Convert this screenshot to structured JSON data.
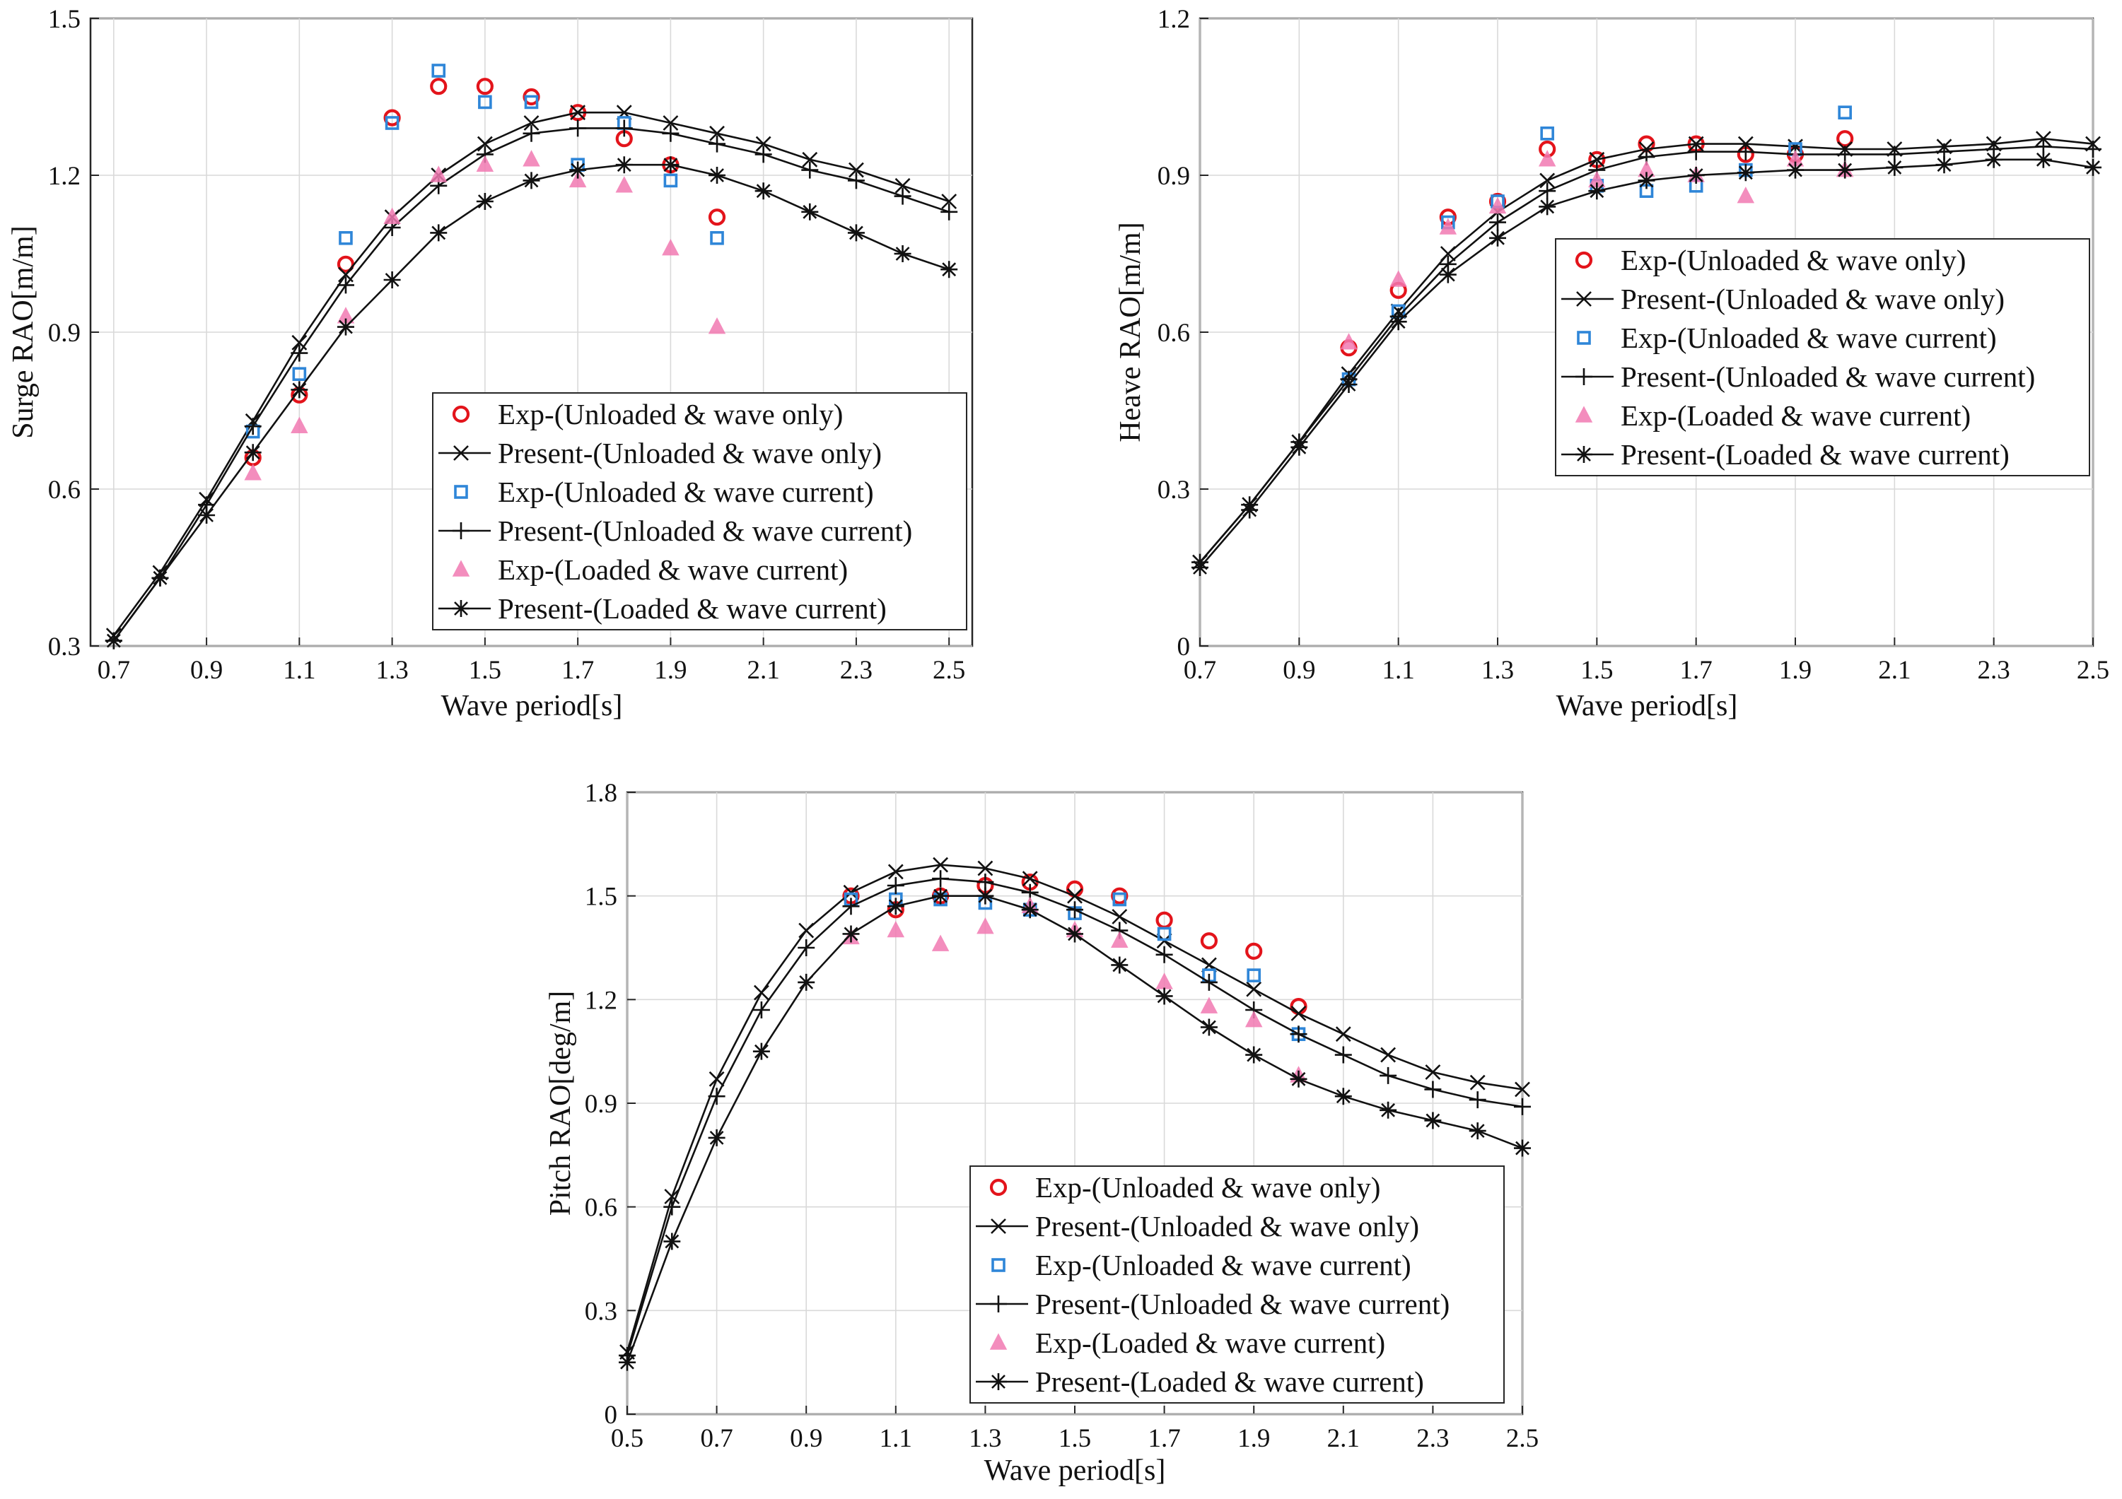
{
  "colors": {
    "exp_unloaded_wave_only": "#e3141b",
    "exp_unloaded_wave_current": "#2f86d8",
    "exp_loaded_wave_current": "#f27ab2",
    "present_lines": "#111111"
  },
  "chart_data": [
    {
      "type": "line",
      "title": "",
      "xlabel": "Wave period[s]",
      "ylabel": "Surge RAO[m/m]",
      "xlim": [
        0.65,
        2.55
      ],
      "ylim": [
        0.3,
        1.5
      ],
      "xticks": [
        "0.7",
        "0.9",
        "1.1",
        "1.3",
        "1.5",
        "1.7",
        "1.9",
        "2.1",
        "2.3",
        "2.5"
      ],
      "yticks": [
        "0.3",
        "0.6",
        "0.9",
        "1.2",
        "1.5"
      ],
      "legend_position": "lower-right",
      "grid": true,
      "series": [
        {
          "name": "Exp-(Unloaded & wave only)",
          "marker": "circle",
          "style": "exp_unloaded_wave_only",
          "x": [
            1.0,
            1.1,
            1.2,
            1.3,
            1.4,
            1.5,
            1.6,
            1.7,
            1.8,
            1.9,
            2.0
          ],
          "y": [
            0.66,
            0.78,
            1.03,
            1.31,
            1.37,
            1.37,
            1.35,
            1.32,
            1.27,
            1.22,
            1.12
          ]
        },
        {
          "name": "Present-(Unloaded & wave only)",
          "marker": "x",
          "style": "line",
          "x": [
            0.7,
            0.8,
            0.9,
            1.0,
            1.1,
            1.2,
            1.3,
            1.4,
            1.5,
            1.6,
            1.7,
            1.8,
            1.9,
            2.0,
            2.1,
            2.2,
            2.3,
            2.4,
            2.5
          ],
          "y": [
            0.32,
            0.44,
            0.58,
            0.73,
            0.88,
            1.01,
            1.12,
            1.2,
            1.26,
            1.3,
            1.32,
            1.32,
            1.3,
            1.28,
            1.26,
            1.23,
            1.21,
            1.18,
            1.15
          ]
        },
        {
          "name": "Exp-(Unloaded & wave current)",
          "marker": "square",
          "style": "exp_unloaded_wave_current",
          "x": [
            1.0,
            1.1,
            1.2,
            1.3,
            1.4,
            1.5,
            1.6,
            1.7,
            1.8,
            1.9,
            2.0
          ],
          "y": [
            0.71,
            0.82,
            1.08,
            1.3,
            1.4,
            1.34,
            1.34,
            1.22,
            1.3,
            1.19,
            1.08
          ]
        },
        {
          "name": "Present-(Unloaded & wave current)",
          "marker": "plus",
          "style": "line",
          "x": [
            0.7,
            0.8,
            0.9,
            1.0,
            1.1,
            1.2,
            1.3,
            1.4,
            1.5,
            1.6,
            1.7,
            1.8,
            1.9,
            2.0,
            2.1,
            2.2,
            2.3,
            2.4,
            2.5
          ],
          "y": [
            0.31,
            0.43,
            0.57,
            0.72,
            0.86,
            0.99,
            1.1,
            1.18,
            1.24,
            1.28,
            1.29,
            1.29,
            1.28,
            1.26,
            1.24,
            1.21,
            1.19,
            1.16,
            1.13
          ]
        },
        {
          "name": "Exp-(Loaded & wave current)",
          "marker": "triangle",
          "style": "exp_loaded_wave_current",
          "x": [
            1.0,
            1.1,
            1.2,
            1.3,
            1.4,
            1.5,
            1.6,
            1.7,
            1.8,
            1.9,
            2.0
          ],
          "y": [
            0.63,
            0.72,
            0.93,
            1.12,
            1.2,
            1.22,
            1.23,
            1.19,
            1.18,
            1.06,
            0.91
          ]
        },
        {
          "name": "Present-(Loaded & wave current)",
          "marker": "star",
          "style": "line",
          "x": [
            0.7,
            0.8,
            0.9,
            1.0,
            1.1,
            1.2,
            1.3,
            1.4,
            1.5,
            1.6,
            1.7,
            1.8,
            1.9,
            2.0,
            2.1,
            2.2,
            2.3,
            2.4,
            2.5
          ],
          "y": [
            0.31,
            0.43,
            0.55,
            0.67,
            0.79,
            0.91,
            1.0,
            1.09,
            1.15,
            1.19,
            1.21,
            1.22,
            1.22,
            1.2,
            1.17,
            1.13,
            1.09,
            1.05,
            1.02
          ]
        }
      ]
    },
    {
      "type": "line",
      "title": "",
      "xlabel": "Wave period[s]",
      "ylabel": "Heave RAO[m/m]",
      "xlim": [
        0.7,
        2.5
      ],
      "ylim": [
        0,
        1.2
      ],
      "xticks": [
        "0.7",
        "0.9",
        "1.1",
        "1.3",
        "1.5",
        "1.7",
        "1.9",
        "2.1",
        "2.3",
        "2.5"
      ],
      "yticks": [
        "0",
        "0.3",
        "0.6",
        "0.9",
        "1.2"
      ],
      "legend_position": "center-right",
      "grid": true,
      "series": [
        {
          "name": "Exp-(Unloaded & wave only)",
          "marker": "circle",
          "style": "exp_unloaded_wave_only",
          "x": [
            1.0,
            1.1,
            1.2,
            1.3,
            1.4,
            1.5,
            1.6,
            1.7,
            1.8,
            1.9,
            2.0
          ],
          "y": [
            0.57,
            0.68,
            0.82,
            0.85,
            0.95,
            0.93,
            0.96,
            0.96,
            0.94,
            0.94,
            0.97
          ]
        },
        {
          "name": "Present-(Unloaded & wave only)",
          "marker": "x",
          "style": "line",
          "x": [
            0.7,
            0.8,
            0.9,
            1.0,
            1.1,
            1.2,
            1.3,
            1.4,
            1.5,
            1.6,
            1.7,
            1.8,
            1.9,
            2.0,
            2.1,
            2.2,
            2.3,
            2.4,
            2.5
          ],
          "y": [
            0.16,
            0.27,
            0.39,
            0.52,
            0.64,
            0.75,
            0.83,
            0.89,
            0.93,
            0.95,
            0.96,
            0.96,
            0.955,
            0.95,
            0.95,
            0.955,
            0.96,
            0.97,
            0.96
          ]
        },
        {
          "name": "Exp-(Unloaded & wave current)",
          "marker": "square",
          "style": "exp_unloaded_wave_current",
          "x": [
            1.0,
            1.1,
            1.2,
            1.3,
            1.4,
            1.5,
            1.6,
            1.7,
            1.8,
            1.9,
            2.0
          ],
          "y": [
            0.51,
            0.64,
            0.81,
            0.85,
            0.98,
            0.88,
            0.87,
            0.88,
            0.91,
            0.95,
            1.02
          ]
        },
        {
          "name": "Present-(Unloaded & wave current)",
          "marker": "plus",
          "style": "line",
          "x": [
            0.7,
            0.8,
            0.9,
            1.0,
            1.1,
            1.2,
            1.3,
            1.4,
            1.5,
            1.6,
            1.7,
            1.8,
            1.9,
            2.0,
            2.1,
            2.2,
            2.3,
            2.4,
            2.5
          ],
          "y": [
            0.16,
            0.27,
            0.39,
            0.51,
            0.63,
            0.73,
            0.81,
            0.87,
            0.91,
            0.935,
            0.945,
            0.945,
            0.94,
            0.94,
            0.94,
            0.945,
            0.95,
            0.955,
            0.95
          ]
        },
        {
          "name": "Exp-(Loaded & wave current)",
          "marker": "triangle",
          "style": "exp_loaded_wave_current",
          "x": [
            1.0,
            1.1,
            1.2,
            1.3,
            1.4,
            1.5,
            1.6,
            1.7,
            1.8,
            1.9,
            2.0
          ],
          "y": [
            0.58,
            0.7,
            0.8,
            0.84,
            0.93,
            0.89,
            0.91,
            0.9,
            0.86,
            0.93,
            0.91
          ]
        },
        {
          "name": "Present-(Loaded & wave current)",
          "marker": "star",
          "style": "line",
          "x": [
            0.7,
            0.8,
            0.9,
            1.0,
            1.1,
            1.2,
            1.3,
            1.4,
            1.5,
            1.6,
            1.7,
            1.8,
            1.9,
            2.0,
            2.1,
            2.2,
            2.3,
            2.4,
            2.5
          ],
          "y": [
            0.15,
            0.26,
            0.38,
            0.5,
            0.62,
            0.71,
            0.78,
            0.84,
            0.87,
            0.89,
            0.9,
            0.905,
            0.91,
            0.91,
            0.915,
            0.92,
            0.93,
            0.93,
            0.915
          ]
        }
      ]
    },
    {
      "type": "line",
      "title": "",
      "xlabel": "Wave period[s]",
      "ylabel": "Pitch RAO[deg/m]",
      "xlim": [
        0.5,
        2.5
      ],
      "ylim": [
        0,
        1.8
      ],
      "xticks": [
        "0.5",
        "0.7",
        "0.9",
        "1.1",
        "1.3",
        "1.5",
        "1.7",
        "1.9",
        "2.1",
        "2.3",
        "2.5"
      ],
      "yticks": [
        "0",
        "0.3",
        "0.6",
        "0.9",
        "1.2",
        "1.5",
        "1.8"
      ],
      "legend_position": "lower-center",
      "grid": true,
      "series": [
        {
          "name": "Exp-(Unloaded & wave only)",
          "marker": "circle",
          "style": "exp_unloaded_wave_only",
          "x": [
            1.0,
            1.1,
            1.2,
            1.3,
            1.4,
            1.5,
            1.6,
            1.7,
            1.8,
            1.9,
            2.0
          ],
          "y": [
            1.5,
            1.46,
            1.5,
            1.53,
            1.54,
            1.52,
            1.5,
            1.43,
            1.37,
            1.34,
            1.18
          ]
        },
        {
          "name": "Present-(Unloaded & wave only)",
          "marker": "x",
          "style": "line",
          "x": [
            0.5,
            0.6,
            0.7,
            0.8,
            0.9,
            1.0,
            1.1,
            1.2,
            1.3,
            1.4,
            1.5,
            1.6,
            1.7,
            1.8,
            1.9,
            2.0,
            2.1,
            2.2,
            2.3,
            2.4,
            2.5
          ],
          "y": [
            0.18,
            0.63,
            0.97,
            1.22,
            1.4,
            1.51,
            1.57,
            1.59,
            1.58,
            1.55,
            1.5,
            1.44,
            1.37,
            1.3,
            1.23,
            1.16,
            1.1,
            1.04,
            0.99,
            0.96,
            0.94
          ]
        },
        {
          "name": "Exp-(Unloaded & wave current)",
          "marker": "square",
          "style": "exp_unloaded_wave_current",
          "x": [
            1.0,
            1.1,
            1.2,
            1.3,
            1.4,
            1.5,
            1.6,
            1.7,
            1.8,
            1.9,
            2.0
          ],
          "y": [
            1.49,
            1.49,
            1.49,
            1.48,
            1.46,
            1.45,
            1.49,
            1.39,
            1.27,
            1.27,
            1.1
          ]
        },
        {
          "name": "Present-(Unloaded & wave current)",
          "marker": "plus",
          "style": "line",
          "x": [
            0.5,
            0.6,
            0.7,
            0.8,
            0.9,
            1.0,
            1.1,
            1.2,
            1.3,
            1.4,
            1.5,
            1.6,
            1.7,
            1.8,
            1.9,
            2.0,
            2.1,
            2.2,
            2.3,
            2.4,
            2.5
          ],
          "y": [
            0.17,
            0.6,
            0.92,
            1.17,
            1.35,
            1.47,
            1.53,
            1.55,
            1.54,
            1.51,
            1.46,
            1.4,
            1.33,
            1.25,
            1.17,
            1.1,
            1.04,
            0.98,
            0.94,
            0.91,
            0.89
          ]
        },
        {
          "name": "Exp-(Loaded & wave current)",
          "marker": "triangle",
          "style": "exp_loaded_wave_current",
          "x": [
            1.0,
            1.1,
            1.2,
            1.3,
            1.4,
            1.5,
            1.6,
            1.7,
            1.8,
            1.9,
            2.0
          ],
          "y": [
            1.38,
            1.4,
            1.36,
            1.41,
            1.47,
            1.4,
            1.37,
            1.25,
            1.18,
            1.14,
            0.98
          ]
        },
        {
          "name": "Present-(Loaded & wave current)",
          "marker": "star",
          "style": "line",
          "x": [
            0.5,
            0.6,
            0.7,
            0.8,
            0.9,
            1.0,
            1.1,
            1.2,
            1.3,
            1.4,
            1.5,
            1.6,
            1.7,
            1.8,
            1.9,
            2.0,
            2.1,
            2.2,
            2.3,
            2.4,
            2.5
          ],
          "y": [
            0.15,
            0.5,
            0.8,
            1.05,
            1.25,
            1.39,
            1.47,
            1.5,
            1.5,
            1.46,
            1.39,
            1.3,
            1.21,
            1.12,
            1.04,
            0.97,
            0.92,
            0.88,
            0.85,
            0.82,
            0.77
          ]
        }
      ]
    }
  ]
}
